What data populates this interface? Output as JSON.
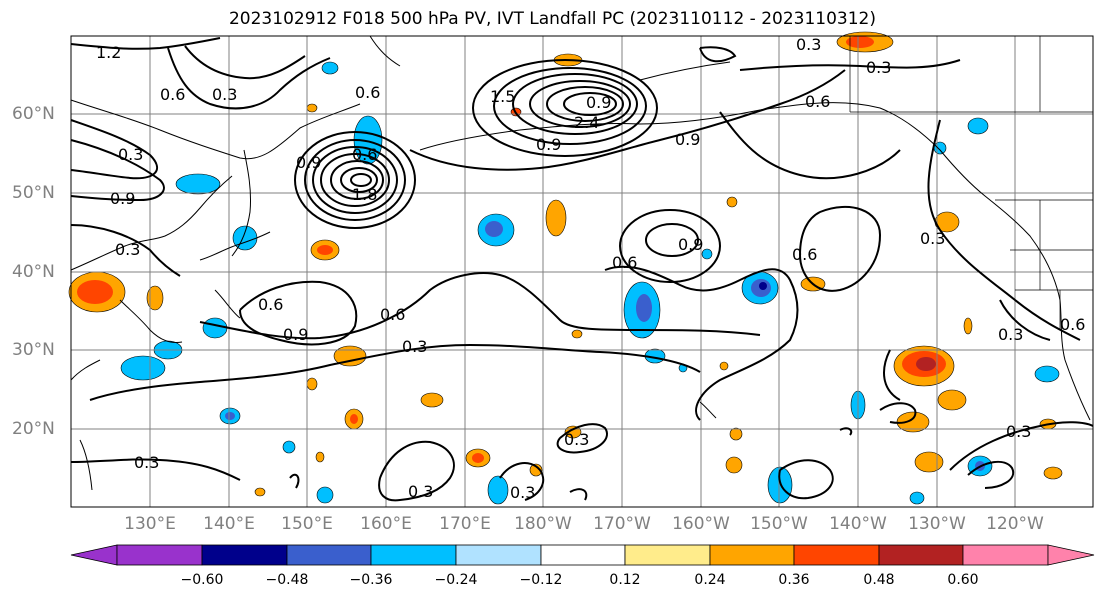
{
  "title": "2023102912 F018 500 hPa PV, IVT Landfall PC (2023110112 - 2023110312)",
  "map": {
    "lat_labels": [
      "60°N",
      "50°N",
      "40°N",
      "30°N",
      "20°N"
    ],
    "lon_labels": [
      "130°E",
      "140°E",
      "150°E",
      "160°E",
      "170°E",
      "180°W",
      "170°W",
      "160°W",
      "150°W",
      "140°W",
      "130°W",
      "120°W"
    ],
    "contour_labels": [
      "1.2",
      "0.6",
      "0.3",
      "0.6",
      "0.9",
      "1.5",
      "2.4",
      "0.9",
      "0.9",
      "1.8",
      "0.3",
      "0.6",
      "0.9",
      "0.6",
      "0.3",
      "0.9",
      "0.3",
      "0.3",
      "0.6",
      "0.9",
      "0.6",
      "0.3",
      "0.6",
      "0.3",
      "0.9",
      "0.3",
      "0.3",
      "0.3",
      "0.6",
      "0.3",
      "0.3",
      "0.6",
      "0.3"
    ],
    "colors": {
      "land_line": "#000000",
      "grid": "#808080",
      "contour": "#000000"
    }
  },
  "colorbar": {
    "ticks": [
      "−0.60",
      "−0.48",
      "−0.36",
      "−0.24",
      "−0.12",
      "0.12",
      "0.24",
      "0.36",
      "0.48",
      "0.60"
    ],
    "colors": [
      "#9932cc",
      "#00008b",
      "#3a5fcd",
      "#00bfff",
      "#b0e2ff",
      "#ffffff",
      "#ffec8b",
      "#ffa500",
      "#ff4500",
      "#b22222",
      "#ff82ab"
    ]
  }
}
